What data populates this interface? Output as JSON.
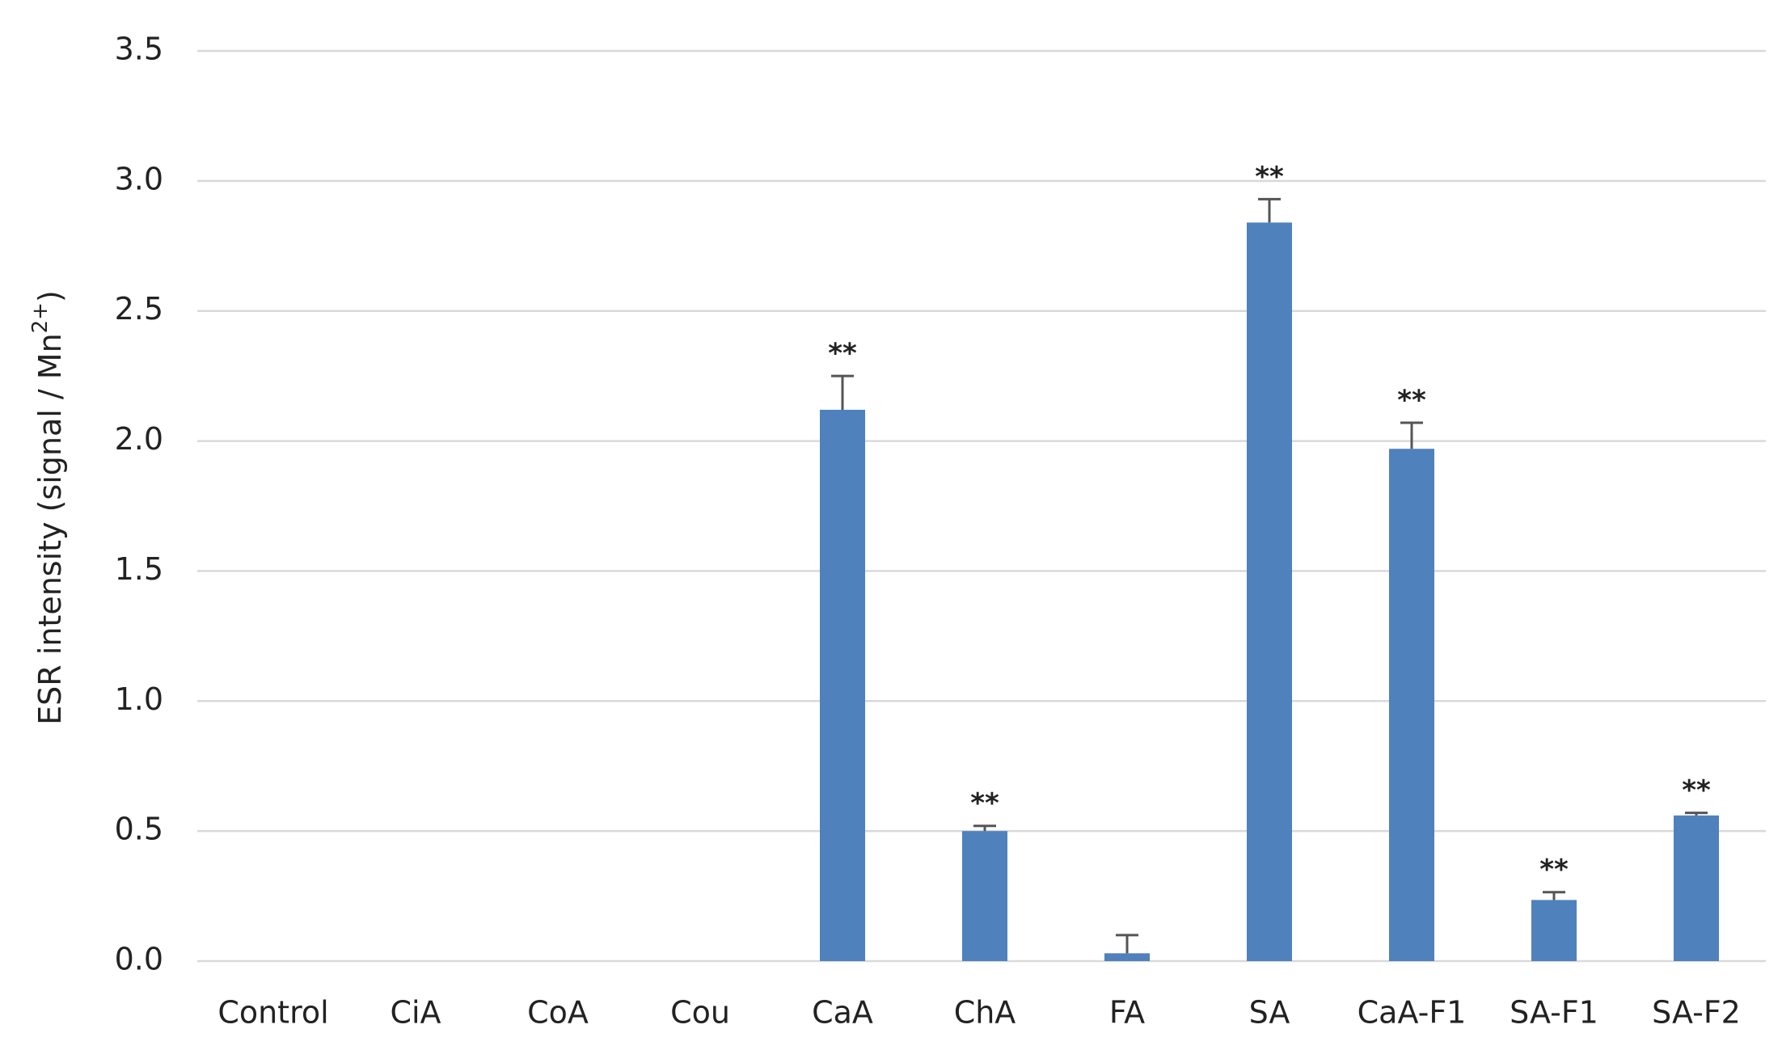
{
  "chart_data": {
    "type": "bar",
    "ylabel": "ESR intensity (signal / Mn",
    "ylabel_sup": "2+",
    "ylabel_end": ")",
    "categories": [
      "Control",
      "CiA",
      "CoA",
      "Cou",
      "CaA",
      "ChA",
      "FA",
      "SA",
      "CaA-F1",
      "SA-F1",
      "SA-F2"
    ],
    "values": [
      0,
      0,
      0,
      0,
      2.12,
      0.5,
      0.03,
      2.84,
      1.97,
      0.235,
      0.56
    ],
    "errors": [
      0,
      0,
      0,
      0,
      0.13,
      0.02,
      0.07,
      0.09,
      0.1,
      0.03,
      0.01
    ],
    "significance": [
      null,
      null,
      null,
      null,
      "**",
      "**",
      null,
      "**",
      "**",
      "**",
      "**"
    ],
    "color": "#4f81bd",
    "ylim": [
      0,
      3.5
    ],
    "yticks": [
      {
        "value": 0,
        "label": "0.0"
      },
      0.5,
      {
        "value": 1,
        "label": "1.0"
      },
      1.5,
      {
        "value": 2,
        "label": "2.0"
      },
      2.5,
      {
        "value": 3,
        "label": "3.0"
      },
      3.5
    ],
    "grid": true
  }
}
